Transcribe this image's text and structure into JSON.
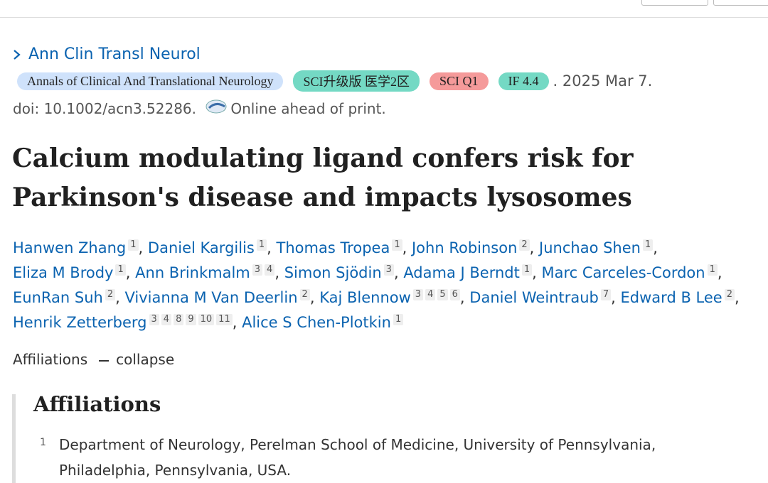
{
  "journal": {
    "abbrev": "Ann Clin Transl Neurol",
    "badges": [
      "Annals of Clinical And Translational Neurology",
      "SCI升级版 医学2区",
      "SCI Q1",
      "IF 4.4"
    ],
    "date": ". 2025 Mar 7.",
    "doi": "doi: 10.1002/acn3.52286.",
    "status": "Online ahead of print."
  },
  "title": "Calcium modulating ligand confers risk for Parkinson's disease and impacts lysosomes",
  "separator": ",",
  "authors": [
    [
      {
        "name": "Hanwen Zhang",
        "affs": [
          "1"
        ]
      },
      {
        "name": "Daniel Kargilis",
        "affs": [
          "1"
        ]
      },
      {
        "name": "Thomas Tropea",
        "affs": [
          "1"
        ]
      },
      {
        "name": "John Robinson",
        "affs": [
          "2"
        ]
      },
      {
        "name": "Junchao Shen",
        "affs": [
          "1"
        ]
      }
    ],
    [
      {
        "name": "Eliza M Brody",
        "affs": [
          "1"
        ]
      },
      {
        "name": "Ann Brinkmalm",
        "affs": [
          "3",
          "4"
        ]
      },
      {
        "name": "Simon Sjödin",
        "affs": [
          "3"
        ]
      },
      {
        "name": "Adama J Berndt",
        "affs": [
          "1"
        ]
      },
      {
        "name": "Marc Carceles-Cordon",
        "affs": [
          "1"
        ]
      }
    ],
    [
      {
        "name": "EunRan Suh",
        "affs": [
          "2"
        ]
      },
      {
        "name": "Vivianna M Van Deerlin",
        "affs": [
          "2"
        ]
      },
      {
        "name": "Kaj Blennow",
        "affs": [
          "3",
          "4",
          "5",
          "6"
        ]
      },
      {
        "name": "Daniel Weintraub",
        "affs": [
          "7"
        ]
      },
      {
        "name": "Edward B Lee",
        "affs": [
          "2"
        ]
      }
    ],
    [
      {
        "name": "Henrik Zetterberg",
        "affs": [
          "3",
          "4",
          "8",
          "9",
          "10",
          "11"
        ]
      },
      {
        "name": "Alice S Chen-Plotkin",
        "affs": [
          "1"
        ]
      }
    ]
  ],
  "affiliations_toggle": {
    "label": "Affiliations",
    "action": "collapse"
  },
  "affiliations": {
    "heading": "Affiliations",
    "items": [
      {
        "number": "1",
        "text": "Department of Neurology, Perelman School of Medicine, University of Pennsylvania, Philadelphia, Pennsylvania, USA."
      }
    ]
  }
}
